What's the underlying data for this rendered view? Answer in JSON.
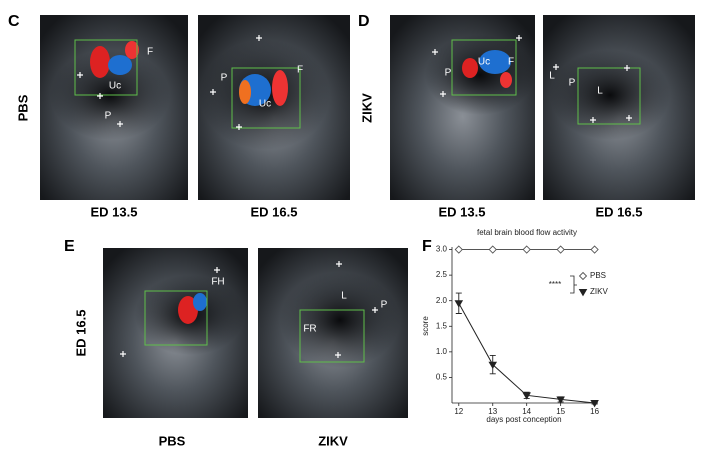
{
  "panels": {
    "C": {
      "label": "C",
      "row_label": "PBS",
      "captions": [
        "ED 13.5",
        "ED 16.5"
      ],
      "annotations": [
        [
          "F",
          "Uc",
          "P"
        ],
        [
          "P",
          "F",
          "Uc"
        ]
      ]
    },
    "D": {
      "label": "D",
      "row_label": "ZIKV",
      "captions": [
        "ED 13.5",
        "ED 16.5"
      ],
      "annotations": [
        [
          "P",
          "Uc",
          "F"
        ],
        [
          "L",
          "P",
          "L"
        ]
      ]
    },
    "E": {
      "label": "E",
      "row_label": "ED 16.5",
      "captions": [
        "PBS",
        "ZIKV"
      ],
      "annotations": [
        [
          "FH"
        ],
        [
          "L",
          "P",
          "FR"
        ]
      ]
    },
    "F": {
      "label": "F"
    }
  },
  "chart_data": {
    "type": "line",
    "title": "fetal brain blood flow activity",
    "x_label": "days post conception",
    "y_label": "score",
    "x": [
      12,
      13,
      14,
      15,
      16
    ],
    "series": [
      {
        "name": "PBS",
        "color": "#555555",
        "marker": "diamond",
        "values": [
          3,
          3,
          3,
          3,
          3
        ]
      },
      {
        "name": "ZIKV",
        "color": "#222222",
        "marker": "triangle-down",
        "values": [
          1.95,
          0.75,
          0.15,
          0.07,
          0.0
        ],
        "errors": [
          0.2,
          0.18,
          0.06,
          0.05,
          0.02
        ]
      }
    ],
    "annotation": "****",
    "xlim": [
      11.8,
      16.1
    ],
    "ylim": [
      0,
      3.05
    ],
    "xticks": [
      12,
      13,
      14,
      15,
      16
    ],
    "yticks": [
      {
        "value": 0.5,
        "label": "0.5"
      },
      {
        "value": 1,
        "label": "1.0"
      },
      {
        "value": 1.5,
        "label": "1.5"
      },
      {
        "value": 2,
        "label": "2.0"
      },
      {
        "value": 2.5,
        "label": "2.5"
      },
      {
        "value": 3,
        "label": "3.0"
      }
    ]
  }
}
